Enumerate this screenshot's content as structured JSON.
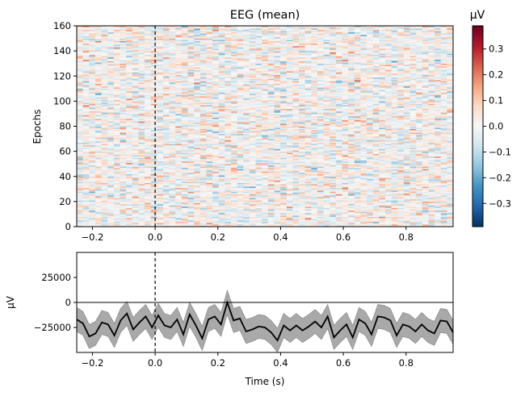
{
  "chart_data": [
    {
      "type": "heatmap",
      "title": "EEG (mean)",
      "ylabel": "Epochs",
      "xlim": [
        -0.25,
        0.95
      ],
      "ylim": [
        0,
        160
      ],
      "xticks": [
        -0.2,
        0.0,
        0.2,
        0.4,
        0.6,
        0.8
      ],
      "xtick_labels": [
        "−0.2",
        "0.0",
        "0.2",
        "0.4",
        "0.6",
        "0.8"
      ],
      "yticks": [
        0,
        20,
        40,
        60,
        80,
        100,
        120,
        140,
        160
      ],
      "ytick_labels": [
        "0",
        "20",
        "40",
        "60",
        "80",
        "100",
        "120",
        "140",
        "160"
      ],
      "n_epochs": 160,
      "n_times": 61,
      "event_time": 0.0,
      "colormap": "RdBu_r",
      "colorbar": {
        "label": "µV",
        "vmin": -0.39,
        "vmax": 0.39,
        "ticks": [
          -0.3,
          -0.2,
          -0.1,
          0.0,
          0.1,
          0.2,
          0.3
        ],
        "tick_labels": [
          "−0.3",
          "−0.2",
          "−0.1",
          "0.0",
          "0.1",
          "0.2",
          "0.3"
        ]
      }
    },
    {
      "type": "line",
      "xlabel": "Time (s)",
      "ylabel": "µV",
      "xlim": [
        -0.25,
        0.95
      ],
      "ylim": [
        -50000,
        50000
      ],
      "xticks": [
        -0.2,
        0.0,
        0.2,
        0.4,
        0.6,
        0.8
      ],
      "xtick_labels": [
        "−0.2",
        "0.0",
        "0.2",
        "0.4",
        "0.6",
        "0.8"
      ],
      "yticks": [
        -25000,
        0,
        25000
      ],
      "ytick_labels": [
        "−25000",
        "0",
        "25000"
      ],
      "zero_line": 0,
      "event_time": 0.0,
      "x": [
        -0.25,
        -0.23,
        -0.21,
        -0.19,
        -0.17,
        -0.15,
        -0.13,
        -0.11,
        -0.09,
        -0.07,
        -0.05,
        -0.03,
        -0.01,
        0.01,
        0.03,
        0.05,
        0.07,
        0.09,
        0.11,
        0.13,
        0.15,
        0.17,
        0.19,
        0.21,
        0.23,
        0.25,
        0.27,
        0.29,
        0.31,
        0.33,
        0.35,
        0.37,
        0.39,
        0.41,
        0.43,
        0.45,
        0.47,
        0.49,
        0.51,
        0.53,
        0.55,
        0.57,
        0.59,
        0.61,
        0.63,
        0.65,
        0.67,
        0.69,
        0.71,
        0.73,
        0.75,
        0.77,
        0.79,
        0.81,
        0.83,
        0.85,
        0.87,
        0.89,
        0.91,
        0.93,
        0.95
      ],
      "mean": [
        -17000,
        -21000,
        -34000,
        -31000,
        -20000,
        -22000,
        -33000,
        -18000,
        -11000,
        -27000,
        -20000,
        -14000,
        -25000,
        -13000,
        -23000,
        -25000,
        -17000,
        -32000,
        -12000,
        -23000,
        -36000,
        -17000,
        -14000,
        -22000,
        0,
        -18000,
        -16000,
        -29000,
        -27000,
        -24000,
        -25000,
        -30000,
        -38000,
        -23000,
        -28000,
        -23000,
        -28000,
        -24000,
        -19000,
        -25000,
        -14000,
        -35000,
        -28000,
        -22000,
        -35000,
        -17000,
        -21000,
        -32000,
        -14000,
        -15000,
        -18000,
        -33000,
        -22000,
        -24000,
        -29000,
        -22000,
        -28000,
        -31000,
        -18000,
        -19000,
        -30000
      ],
      "ci_halfwidth": 12000,
      "line_color": "#000000",
      "band_color": "#a9a9a9"
    }
  ]
}
